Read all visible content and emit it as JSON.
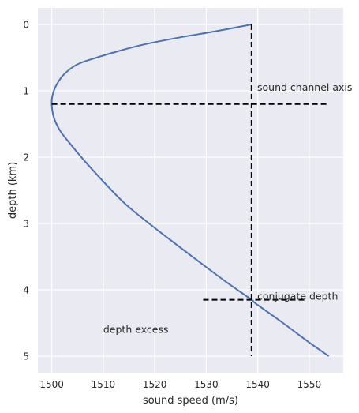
{
  "chart_data": {
    "type": "line",
    "title": "",
    "xlabel": "sound speed (m/s)",
    "ylabel": "depth (km)",
    "xlim": [
      1497.3,
      1556.6
    ],
    "ylim": [
      5.25,
      -0.25
    ],
    "y_inverted": true,
    "grid": true,
    "style": "seaborn",
    "colors": {
      "background": "#eaeaf2",
      "grid": "#ffffff",
      "series": "#4c72b0",
      "guides": "#000000"
    },
    "xticks": [
      1500,
      1510,
      1520,
      1530,
      1540,
      1550
    ],
    "yticks": [
      0,
      1,
      2,
      3,
      4,
      5
    ],
    "series": [
      {
        "name": "",
        "x": [
          1538.8,
          1532.0,
          1524.5,
          1518.0,
          1513.0,
          1508.7,
          1505.0,
          1502.4,
          1501.0,
          1500.2,
          1500.0,
          1500.4,
          1501.6,
          1503.6,
          1506.3,
          1509.8,
          1514.2,
          1518.9,
          1523.9,
          1529.0,
          1534.2,
          1538.8,
          1539.5,
          1544.9,
          1550.1,
          1553.8
        ],
        "y": [
          0.0,
          0.1,
          0.2,
          0.3,
          0.4,
          0.5,
          0.6,
          0.75,
          0.9,
          1.05,
          1.2,
          1.4,
          1.6,
          1.8,
          2.05,
          2.35,
          2.7,
          3.0,
          3.3,
          3.6,
          3.9,
          4.15,
          4.2,
          4.5,
          4.8,
          5.0
        ]
      }
    ],
    "guides": [
      {
        "orientation": "horizontal",
        "y": 1.2,
        "x_from": 1500.0,
        "x_to": 1553.8
      },
      {
        "orientation": "vertical",
        "x": 1538.8,
        "y_from": 0.0,
        "y_to": 5.0
      },
      {
        "orientation": "horizontal",
        "y": 4.15,
        "x_from": 1529.4,
        "x_to": 1549.2
      }
    ],
    "annotations": [
      {
        "text": "sound channel axis",
        "x": 1539.9,
        "y": 1.0
      },
      {
        "text": "conjugate depth",
        "x": 1539.9,
        "y": 4.15
      },
      {
        "text": "depth excess",
        "x": 1510.0,
        "y": 4.65
      }
    ]
  }
}
